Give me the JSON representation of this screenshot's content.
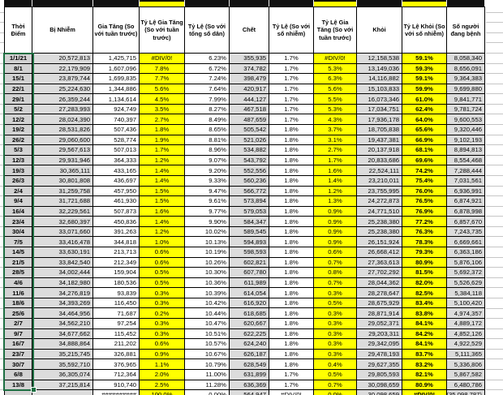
{
  "table": {
    "headers": [
      "Thời Điểm",
      "Bị Nhiễm",
      "Gia Tăng (So với tuần trước)",
      "Tỷ Lệ Gia Tăng (So với tuần trước)",
      "Tỷ Lệ (So với tổng số dân)",
      "Chết",
      "Tỷ Lệ (So với số nhiễm)",
      "Tỷ Lệ Gia Tăng (So với tuần trước)",
      "Khỏi",
      "Tỷ Lệ Khỏi (So với số nhiễm)",
      "Số người đang bệnh"
    ],
    "rows": [
      [
        "1/1/21",
        "20,572,813",
        "1,425,715",
        "#DIV/0!",
        "6.23%",
        "355,935",
        "1.7%",
        "#DIV/0!",
        "12,158,538",
        "59.1%",
        "8,058,340"
      ],
      [
        "8/1",
        "22,179,909",
        "1,607,096",
        "7.8%",
        "6.72%",
        "374,782",
        "1.7%",
        "5.3%",
        "13,149,036",
        "59.3%",
        "8,656,091"
      ],
      [
        "15/1",
        "23,879,744",
        "1,699,835",
        "7.7%",
        "7.24%",
        "398,479",
        "1.7%",
        "6.3%",
        "14,116,882",
        "59.1%",
        "9,364,383"
      ],
      [
        "22/1",
        "25,224,630",
        "1,344,886",
        "5.6%",
        "7.64%",
        "420,917",
        "1.7%",
        "5.6%",
        "15,103,833",
        "59.9%",
        "9,699,880"
      ],
      [
        "29/1",
        "26,359,244",
        "1,134,614",
        "4.5%",
        "7.99%",
        "444,127",
        "1.7%",
        "5.5%",
        "16,073,346",
        "61.0%",
        "9,841,771"
      ],
      [
        "5/2",
        "27,283,993",
        "924,749",
        "3.5%",
        "8.27%",
        "467,518",
        "1.7%",
        "5.3%",
        "17,034,751",
        "62.4%",
        "9,781,724"
      ],
      [
        "12/2",
        "28,024,390",
        "740,397",
        "2.7%",
        "8.49%",
        "487,659",
        "1.7%",
        "4.3%",
        "17,936,178",
        "64.0%",
        "9,600,553"
      ],
      [
        "19/2",
        "28,531,826",
        "507,436",
        "1.8%",
        "8.65%",
        "505,542",
        "1.8%",
        "3.7%",
        "18,705,838",
        "65.6%",
        "9,320,446"
      ],
      [
        "26/2",
        "29,060,600",
        "528,774",
        "1.9%",
        "8.81%",
        "521,026",
        "1.8%",
        "3.1%",
        "19,437,381",
        "66.9%",
        "9,102,193"
      ],
      [
        "5/3",
        "29,567,613",
        "507,013",
        "1.7%",
        "8.96%",
        "534,882",
        "1.8%",
        "2.7%",
        "20,137,918",
        "68.1%",
        "8,894,813"
      ],
      [
        "12/3",
        "29,931,946",
        "364,333",
        "1.2%",
        "9.07%",
        "543,792",
        "1.8%",
        "1.7%",
        "20,833,686",
        "69.6%",
        "8,554,468"
      ],
      [
        "19/3",
        "30,365,111",
        "433,165",
        "1.4%",
        "9.20%",
        "552,556",
        "1.8%",
        "1.6%",
        "22,524,111",
        "74.2%",
        "7,288,444"
      ],
      [
        "26/3",
        "30,801,808",
        "436,697",
        "1.4%",
        "9.33%",
        "560,236",
        "1.8%",
        "1.4%",
        "23,210,011",
        "75.4%",
        "7,031,561"
      ],
      [
        "2/4",
        "31,259,758",
        "457,950",
        "1.5%",
        "9.47%",
        "566,772",
        "1.8%",
        "1.2%",
        "23,755,995",
        "76.0%",
        "6,936,991"
      ],
      [
        "9/4",
        "31,721,688",
        "461,930",
        "1.5%",
        "9.61%",
        "573,894",
        "1.8%",
        "1.3%",
        "24,272,873",
        "76.5%",
        "6,874,921"
      ],
      [
        "16/4",
        "32,229,561",
        "507,873",
        "1.6%",
        "9.77%",
        "579,053",
        "1.8%",
        "0.9%",
        "24,771,510",
        "76.9%",
        "6,878,998"
      ],
      [
        "23/4",
        "32,680,397",
        "450,836",
        "1.4%",
        "9.90%",
        "584,347",
        "1.8%",
        "0.9%",
        "25,238,380",
        "77.2%",
        "6,857,670"
      ],
      [
        "30/4",
        "33,071,660",
        "391,263",
        "1.2%",
        "10.02%",
        "589,545",
        "1.8%",
        "0.9%",
        "25,238,380",
        "76.3%",
        "7,243,735"
      ],
      [
        "7/5",
        "33,416,478",
        "344,818",
        "1.0%",
        "10.13%",
        "594,893",
        "1.8%",
        "0.9%",
        "26,151,924",
        "78.3%",
        "6,669,661"
      ],
      [
        "14/5",
        "33,630,191",
        "213,713",
        "0.6%",
        "10.19%",
        "598,593",
        "1.8%",
        "0.6%",
        "26,668,412",
        "79.3%",
        "6,363,186"
      ],
      [
        "21/5",
        "33,842,540",
        "212,349",
        "0.6%",
        "10.26%",
        "602,821",
        "1.8%",
        "0.7%",
        "27,363,613",
        "80.9%",
        "5,876,106"
      ],
      [
        "28/5",
        "34,002,444",
        "159,904",
        "0.5%",
        "10.30%",
        "607,780",
        "1.8%",
        "0.8%",
        "27,702,292",
        "81.5%",
        "5,692,372"
      ],
      [
        "4/6",
        "34,182,980",
        "180,536",
        "0.5%",
        "10.36%",
        "611,989",
        "1.8%",
        "0.7%",
        "28,044,362",
        "82.0%",
        "5,526,629"
      ],
      [
        "11/6",
        "34,276,819",
        "93,839",
        "0.3%",
        "10.39%",
        "614,054",
        "1.8%",
        "0.3%",
        "28,278,647",
        "82.5%",
        "5,384,118"
      ],
      [
        "18/6",
        "34,393,269",
        "116,450",
        "0.3%",
        "10.42%",
        "616,920",
        "1.8%",
        "0.5%",
        "28,675,929",
        "83.4%",
        "5,100,420"
      ],
      [
        "25/6",
        "34,464,956",
        "71,687",
        "0.2%",
        "10.44%",
        "618,685",
        "1.8%",
        "0.3%",
        "28,871,914",
        "83.8%",
        "4,974,357"
      ],
      [
        "2/7",
        "34,562,210",
        "97,254",
        "0.3%",
        "10.47%",
        "620,667",
        "1.8%",
        "0.3%",
        "29,052,371",
        "84.1%",
        "4,889,172"
      ],
      [
        "9/7",
        "34,677,662",
        "115,452",
        "0.3%",
        "10.51%",
        "622,225",
        "1.8%",
        "0.3%",
        "29,203,311",
        "84.2%",
        "4,852,126"
      ],
      [
        "16/7",
        "34,888,864",
        "211,202",
        "0.6%",
        "10.57%",
        "624,240",
        "1.8%",
        "0.3%",
        "29,342,095",
        "84.1%",
        "4,922,529"
      ],
      [
        "23/7",
        "35,215,745",
        "326,881",
        "0.9%",
        "10.67%",
        "626,187",
        "1.8%",
        "0.3%",
        "29,478,193",
        "83.7%",
        "5,111,365"
      ],
      [
        "30/7",
        "35,592,710",
        "376,965",
        "1.1%",
        "10.79%",
        "628,549",
        "1.8%",
        "0.4%",
        "29,627,355",
        "83.2%",
        "5,336,806"
      ],
      [
        "6/8",
        "36,305,074",
        "712,364",
        "2.0%",
        "11.00%",
        "631,899",
        "1.7%",
        "0.5%",
        "29,805,593",
        "82.1%",
        "5,867,582"
      ],
      [
        "13/8",
        "37,215,814",
        "910,740",
        "2.5%",
        "11.28%",
        "636,369",
        "1.7%",
        "0.7%",
        "30,098,659",
        "80.9%",
        "6,480,786"
      ]
    ],
    "partial_row": [
      "",
      "",
      "##########",
      "100.0%",
      "0.00%",
      "564,947",
      "#DIV/0!",
      "0.0%",
      "30,098,659",
      "#DIV/0!",
      "(35,098,787)"
    ],
    "error_cells": [
      [
        0,
        3
      ],
      [
        0,
        7
      ],
      [
        33,
        6
      ],
      [
        33,
        9
      ]
    ]
  },
  "colors": {
    "highlight_yellow": "#ffff00",
    "shaded_gray": "#dcdcdc",
    "date_gray": "#d2d2d2",
    "selection_green": "#1d6f42",
    "top_bar_black": "#101010"
  }
}
